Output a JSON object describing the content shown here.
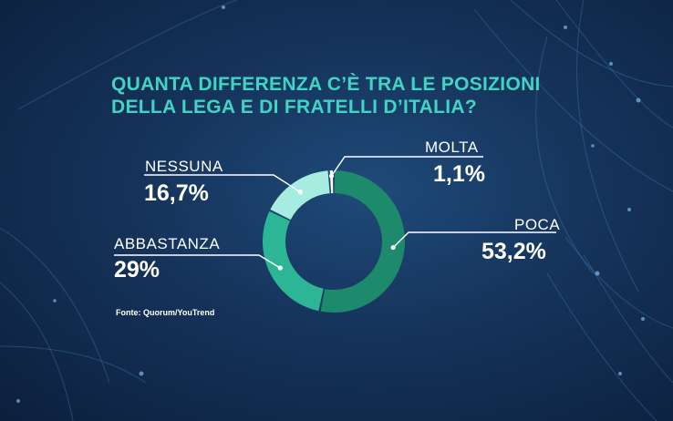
{
  "title_lines": [
    "QUANTA DIFFERENZA C’È TRA LE POSIZIONI",
    "DELLA LEGA E DI FRATELLI D’ITALIA?"
  ],
  "source": "Fonte: Quorum/YouTrend",
  "colors": {
    "title": "#3fd4c4",
    "slices": [
      "#1e8a6c",
      "#2db696",
      "#a6ece0",
      "#ffffff"
    ],
    "leader": "#ffffff"
  },
  "chart_data": {
    "type": "pie",
    "variant": "donut",
    "title": "QUANTA DIFFERENZA C’È TRA LE POSIZIONI DELLA LEGA E DI FRATELLI D’ITALIA?",
    "categories": [
      "POCA",
      "ABBASTANZA",
      "NESSUNA",
      "MOLTA"
    ],
    "values": [
      53.2,
      29,
      16.7,
      1.1
    ],
    "value_labels": [
      "53,2%",
      "29%",
      "16,7%",
      "1,1%"
    ],
    "legend": "none",
    "labels": "callouts with leader lines"
  }
}
